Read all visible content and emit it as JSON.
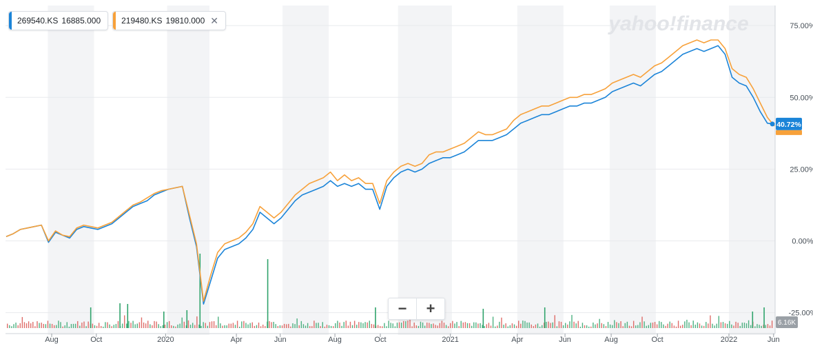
{
  "legend": [
    {
      "symbol": "269540.KS",
      "price": "16885.000",
      "color": "#1b84d8",
      "closable": false
    },
    {
      "symbol": "219480.KS",
      "price": "19810.000",
      "color": "#f7a13a",
      "closable": true
    }
  ],
  "brand": {
    "text": "yahoo!finance",
    "color": "#e2e4e8"
  },
  "zoom": {
    "minus": "−",
    "plus": "+"
  },
  "current_badge": {
    "text": "40.72%",
    "color": "#1b84d8"
  },
  "volume_badge": "6.16K",
  "chart_data": {
    "type": "line",
    "x_label_ticks": [
      "Aug",
      "Oct",
      "2020",
      "Apr",
      "Jun",
      "Aug",
      "Oct",
      "2021",
      "Apr",
      "Jun",
      "Aug",
      "Oct",
      "2022",
      "Jun"
    ],
    "x_label_ticks_index": [
      0.06,
      0.118,
      0.208,
      0.3,
      0.357,
      0.428,
      0.487,
      0.578,
      0.665,
      0.727,
      0.787,
      0.847,
      0.94,
      0.998
    ],
    "y_ticks": [
      "75.00%",
      "50.00%",
      "25.00%",
      "0.00%",
      "-25.00%"
    ],
    "y_tick_values": [
      75,
      50,
      25,
      0,
      -25
    ],
    "ylim": [
      -27,
      82
    ],
    "shaded_months": [
      [
        0.055,
        0.115
      ],
      [
        0.21,
        0.265
      ],
      [
        0.36,
        0.42
      ],
      [
        0.51,
        0.58
      ],
      [
        0.665,
        0.725
      ],
      [
        0.785,
        0.845
      ],
      [
        0.94,
        1.0
      ]
    ],
    "series": [
      {
        "name": "269540.KS",
        "color": "#1b84d8",
        "values": [
          1.5,
          2.5,
          4,
          4.5,
          5,
          5.5,
          -0.5,
          3,
          2,
          1,
          4,
          5,
          4.5,
          4,
          5,
          6,
          8,
          10,
          12,
          13,
          14,
          16,
          17,
          18,
          18.5,
          19,
          8,
          -2,
          -22,
          -14,
          -6,
          -3,
          -2,
          -1,
          1,
          4,
          10,
          8,
          6,
          8,
          11,
          14,
          16,
          17,
          18,
          19,
          21,
          19,
          20,
          19,
          20,
          18,
          18,
          11,
          19,
          22,
          24,
          25,
          24,
          25,
          27,
          28,
          29,
          29,
          30,
          31,
          33,
          35,
          35,
          35,
          36,
          37,
          39,
          41,
          42,
          43,
          44,
          44,
          45,
          46,
          47,
          47,
          48,
          48,
          49,
          50,
          52,
          53,
          54,
          55,
          54,
          56,
          58,
          59,
          61,
          63,
          65,
          66,
          67,
          66,
          67,
          68,
          65,
          57,
          55,
          54,
          50,
          45,
          41,
          40.72
        ]
      },
      {
        "name": "219480.KS",
        "color": "#f7a13a",
        "values": [
          1.5,
          2.5,
          4,
          4.5,
          5,
          5.5,
          0,
          3.5,
          2,
          1.5,
          4.5,
          5.5,
          5,
          4.5,
          5.5,
          6.5,
          8.5,
          10.5,
          12.5,
          13.5,
          15,
          16.5,
          17.5,
          18,
          18.5,
          19,
          9,
          -1,
          -21,
          -12,
          -4,
          -1,
          0,
          1,
          3,
          6,
          12,
          10,
          8,
          10,
          13,
          16,
          18,
          20,
          21,
          22,
          24,
          21,
          23,
          21,
          22,
          20,
          20,
          13,
          21,
          24,
          26,
          27,
          26,
          27,
          30,
          31,
          31,
          32,
          33,
          34,
          36,
          38,
          37,
          37,
          38,
          39,
          42,
          44,
          45,
          46,
          47,
          47,
          48,
          49,
          50,
          50,
          51,
          51,
          52,
          53,
          55,
          56,
          57,
          58,
          57,
          59,
          61,
          62,
          64,
          66,
          68,
          69,
          70,
          69,
          70,
          70,
          67,
          60,
          58,
          57,
          53,
          48,
          43,
          40
        ]
      }
    ]
  }
}
